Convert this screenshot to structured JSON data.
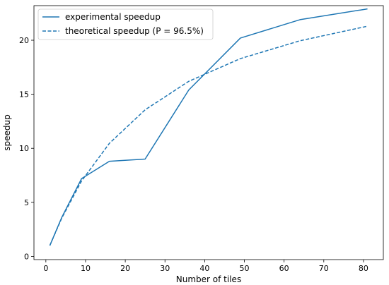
{
  "chart_data": {
    "type": "line",
    "title": "",
    "xlabel": "Number of tiles",
    "ylabel": "speedup",
    "xlim": [
      -3,
      85
    ],
    "ylim": [
      -0.3,
      23.2
    ],
    "xticks": [
      0,
      10,
      20,
      30,
      40,
      50,
      60,
      70,
      80
    ],
    "yticks": [
      0,
      5,
      10,
      15,
      20
    ],
    "grid": false,
    "legend_position": "top-left",
    "color": "#1f77b4",
    "series": [
      {
        "name": "experimental speedup",
        "style": "solid",
        "x": [
          1,
          4,
          9,
          16,
          25,
          36,
          49,
          64,
          81
        ],
        "y": [
          1.0,
          3.6,
          7.2,
          8.8,
          9.0,
          15.4,
          20.2,
          21.9,
          22.9
        ]
      },
      {
        "name": "theoretical speedup (P = 96.5%)",
        "style": "dashed",
        "x": [
          1,
          4,
          9,
          16,
          25,
          36,
          49,
          64,
          81
        ],
        "y": [
          1.0,
          3.54,
          6.98,
          10.46,
          13.56,
          16.2,
          18.3,
          19.95,
          21.3
        ]
      }
    ]
  }
}
